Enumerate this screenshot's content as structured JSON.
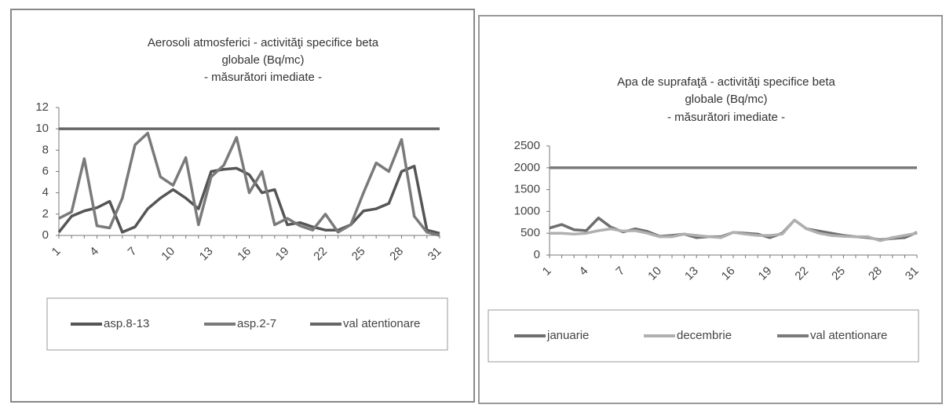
{
  "chart_data": [
    {
      "type": "line",
      "title": [
        "Aerosoli atmosferici  - activităţi specifice beta",
        "globale (Bq/mc)",
        "- măsurători imediate -"
      ],
      "categories": [
        "1",
        null,
        null,
        "4",
        null,
        null,
        "7",
        null,
        null,
        "10",
        null,
        null,
        "13",
        null,
        null,
        "16",
        null,
        null,
        "19",
        null,
        null,
        "22",
        null,
        null,
        "25",
        null,
        null,
        "28",
        null,
        null,
        "31"
      ],
      "ylim": [
        0,
        12
      ],
      "yticks": [
        0,
        2,
        4,
        6,
        8,
        10,
        12
      ],
      "series": [
        {
          "name": "asp.8-13",
          "color": "#555555",
          "values": [
            0.3,
            1.8,
            2.3,
            2.6,
            3.2,
            0.3,
            0.8,
            2.5,
            3.5,
            4.3,
            3.5,
            2.5,
            6,
            6.2,
            6.3,
            5.7,
            4,
            4.3,
            1,
            1.2,
            0.8,
            0.5,
            0.5,
            1,
            2.3,
            2.5,
            3,
            6,
            6.5,
            0.5,
            0.2
          ]
        },
        {
          "name": "asp.2-7",
          "color": "#7a7a7a",
          "values": [
            1.6,
            2.2,
            7.2,
            0.9,
            0.7,
            3.5,
            8.5,
            9.6,
            5.5,
            4.7,
            7.3,
            1,
            5.5,
            6.6,
            9.2,
            4,
            6,
            1,
            1.6,
            0.9,
            0.5,
            2,
            0.3,
            1,
            4,
            6.8,
            6,
            9,
            1.8,
            0.3,
            0
          ]
        },
        {
          "name": "val atentionare",
          "color": "#666666",
          "values": [
            10,
            10,
            10,
            10,
            10,
            10,
            10,
            10,
            10,
            10,
            10,
            10,
            10,
            10,
            10,
            10,
            10,
            10,
            10,
            10,
            10,
            10,
            10,
            10,
            10,
            10,
            10,
            10,
            10,
            10,
            10
          ]
        }
      ]
    },
    {
      "type": "line",
      "title": [
        "Apa de suprafaţă - activităţi specifice beta",
        "globale (Bq/mc)",
        "- măsurători imediate -"
      ],
      "categories": [
        "1",
        null,
        null,
        "4",
        null,
        null,
        "7",
        null,
        null,
        "10",
        null,
        null,
        "13",
        null,
        null,
        "16",
        null,
        null,
        "19",
        null,
        null,
        "22",
        null,
        null,
        "25",
        null,
        null,
        "28",
        null,
        null,
        "31"
      ],
      "ylim": [
        0,
        2500
      ],
      "yticks": [
        0,
        500,
        1000,
        1500,
        2000,
        2500
      ],
      "series": [
        {
          "name": "januarie",
          "color": "#6e6e6e",
          "values": [
            620,
            700,
            580,
            560,
            850,
            640,
            530,
            600,
            540,
            430,
            450,
            480,
            400,
            420,
            420,
            520,
            500,
            480,
            400,
            500,
            800,
            600,
            550,
            500,
            450,
            420,
            400,
            350,
            380,
            400,
            520
          ]
        },
        {
          "name": "decembrie",
          "color": "#b0b0b0",
          "values": [
            500,
            500,
            480,
            500,
            560,
            600,
            550,
            560,
            500,
            420,
            420,
            480,
            450,
            420,
            400,
            520,
            480,
            450,
            450,
            480,
            800,
            600,
            500,
            450,
            430,
            420,
            420,
            330,
            400,
            450,
            500
          ]
        },
        {
          "name": "val atentionare",
          "color": "#7a7a7a",
          "values": [
            2000,
            2000,
            2000,
            2000,
            2000,
            2000,
            2000,
            2000,
            2000,
            2000,
            2000,
            2000,
            2000,
            2000,
            2000,
            2000,
            2000,
            2000,
            2000,
            2000,
            2000,
            2000,
            2000,
            2000,
            2000,
            2000,
            2000,
            2000,
            2000,
            2000,
            2000
          ]
        }
      ]
    }
  ]
}
